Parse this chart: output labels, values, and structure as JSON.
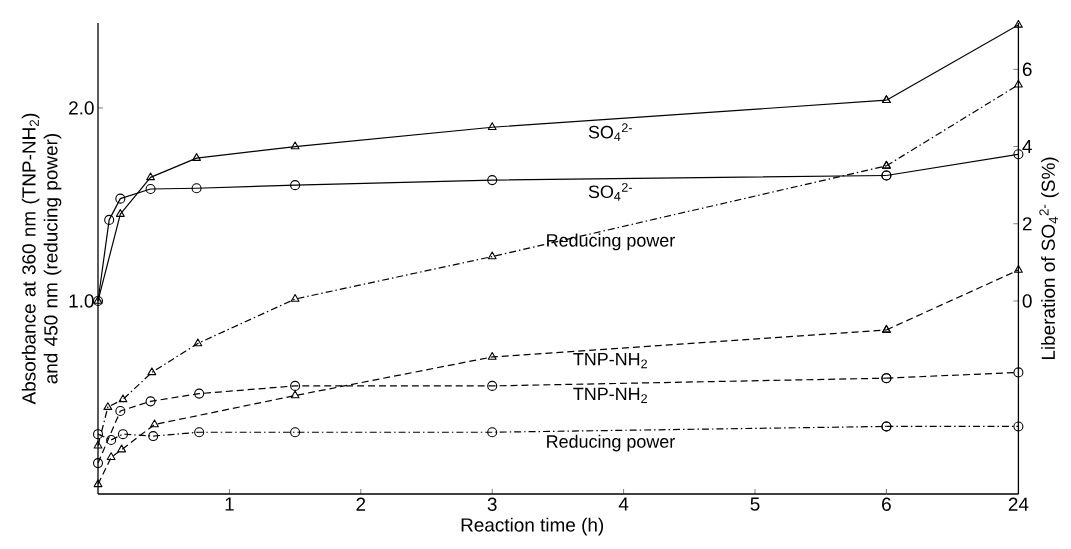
{
  "chart_data": [
    {
      "type": "line",
      "xlabel": "Reaction time (h)",
      "ylabel": "Absorbance at 360 nm (TNP-NH$_{2}$) and 450 nm (reducing power)",
      "xlim": [
        0,
        6
      ],
      "xticks": [
        1,
        2,
        3,
        4,
        5,
        {
          "value": 6,
          "label": null
        }
      ],
      "ylim": [
        0,
        2.44
      ],
      "yticks": [
        {
          "value": 1,
          "label": "1.0"
        },
        {
          "value": 2,
          "label": "2.0"
        }
      ],
      "y2lim": [
        -5,
        7.2
      ],
      "series": [
        {
          "name": "SO$_{4}$$^{2-}$",
          "color": "#000000",
          "axis": "y2",
          "marker": "triangle",
          "line_style": "solid",
          "x": [
            0,
            0.17,
            0.4,
            0.75,
            1.5,
            3,
            6
          ],
          "values": [
            0,
            2.25,
            3.2,
            3.7,
            4.0,
            4.5,
            5.2
          ]
        },
        {
          "name": "SO$_{4}$$^{2-}$",
          "color": "#000000",
          "axis": "y2",
          "marker": "circle",
          "line_style": "solid",
          "x": [
            0,
            0.085,
            0.17,
            0.4,
            0.75,
            1.5,
            3,
            6
          ],
          "values": [
            0,
            2.1,
            2.65,
            2.9,
            2.92,
            3.0,
            3.13,
            3.25
          ]
        },
        {
          "name": "Reducing power",
          "color": "#000000",
          "marker": "triangle",
          "line_style": "dashdot",
          "x": [
            0,
            0.075,
            0.19,
            0.41,
            0.76,
            1.5,
            3,
            6
          ],
          "values": [
            0.25,
            0.45,
            0.49,
            0.63,
            0.78,
            1.01,
            1.23,
            1.7
          ]
        },
        {
          "name": "TNP-NH$_{2}$",
          "color": "#000000",
          "marker": "triangle",
          "line_style": "dashed",
          "x": [
            0,
            0.1,
            0.18,
            0.43,
            1.5,
            3,
            6
          ],
          "values": [
            0.05,
            0.19,
            0.23,
            0.36,
            0.51,
            0.71,
            0.85
          ]
        },
        {
          "name": "TNP-NH$_{2}$",
          "color": "#000000",
          "marker": "circle",
          "line_style": "dashed",
          "x": [
            0,
            0.17,
            0.4,
            0.77,
            1.5,
            3,
            6
          ],
          "values": [
            0.16,
            0.43,
            0.48,
            0.52,
            0.56,
            0.56,
            0.6
          ]
        },
        {
          "name": "Reducing power",
          "color": "#000000",
          "marker": "circle",
          "line_style": "dashdot",
          "x": [
            0,
            0.1,
            0.19,
            0.42,
            0.77,
            1.5,
            3,
            6
          ],
          "values": [
            0.31,
            0.28,
            0.31,
            0.3,
            0.32,
            0.32,
            0.32,
            0.35
          ]
        }
      ]
    },
    {
      "type": "line",
      "y2label": "Liberation of SO$_{4}$$^{2-}$ (S%)",
      "xlim": [
        6,
        24
      ],
      "xticks": [
        6,
        24
      ],
      "ylim": [
        0,
        2.44
      ],
      "y2lim": [
        -5,
        7.2
      ],
      "y2ticks": [
        0,
        2,
        4,
        6
      ],
      "series": [
        {
          "color": "#000000",
          "axis": "y2",
          "marker": "triangle",
          "line_style": "solid",
          "x": [
            6,
            24
          ],
          "values": [
            5.2,
            7.15
          ]
        },
        {
          "color": "#000000",
          "axis": "y2",
          "marker": "circle",
          "line_style": "solid",
          "x": [
            6,
            24
          ],
          "values": [
            3.25,
            3.8
          ]
        },
        {
          "color": "#000000",
          "marker": "triangle",
          "line_style": "dashdot",
          "x": [
            6,
            24
          ],
          "values": [
            1.7,
            2.12
          ]
        },
        {
          "color": "#000000",
          "marker": "triangle",
          "line_style": "dashed",
          "x": [
            6,
            24
          ],
          "values": [
            0.85,
            1.16
          ]
        },
        {
          "color": "#000000",
          "marker": "circle",
          "line_style": "dashed",
          "x": [
            6,
            24
          ],
          "values": [
            0.6,
            0.63
          ]
        },
        {
          "color": "#000000",
          "marker": "circle",
          "line_style": "dashdot",
          "x": [
            6,
            24
          ],
          "values": [
            0.35,
            0.35
          ]
        }
      ]
    }
  ]
}
